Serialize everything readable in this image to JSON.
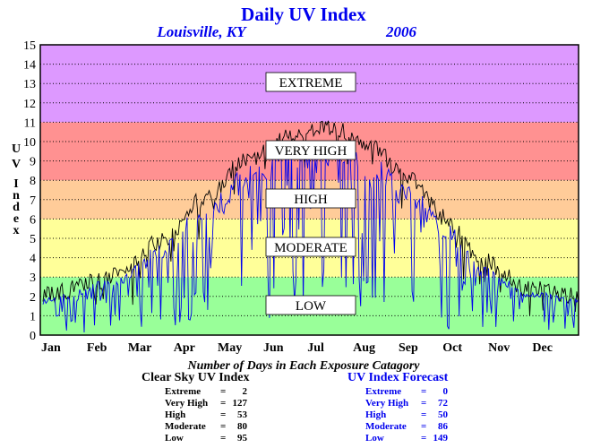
{
  "page": {
    "title": "Daily UV Index",
    "location": "Louisville, KY",
    "year": "2006",
    "subtitle": "Number of Days in Each Exposure Catagory"
  },
  "colors": {
    "extreme": "#dd99ff",
    "very_high": "#ff9191",
    "high": "#ffcc99",
    "moderate": "#ffff99",
    "low": "#99ff99",
    "clear_sky_line": "#000000",
    "forecast_line": "#0000ee",
    "title": "#0000ee"
  },
  "chart_data": {
    "type": "line",
    "title": "Daily UV Index",
    "ylabel": "UV Index",
    "ylim": [
      0,
      15
    ],
    "yticks": [
      "0",
      "1",
      "2",
      "3",
      "4",
      "5",
      "6",
      "7",
      "8",
      "9",
      "10",
      "11",
      "12",
      "13",
      "14",
      "15"
    ],
    "xlim": [
      1,
      365
    ],
    "months": [
      "Jan",
      "Feb",
      "Mar",
      "Apr",
      "May",
      "Jun",
      "Jul",
      "Aug",
      "Sep",
      "Oct",
      "Nov",
      "Dec"
    ],
    "grid": true,
    "bands": [
      {
        "label": "LOW",
        "from": 0,
        "to": 3,
        "color": "#99ff99"
      },
      {
        "label": "MODERATE",
        "from": 3,
        "to": 6,
        "color": "#ffff99"
      },
      {
        "label": "HIGH",
        "from": 6,
        "to": 8,
        "color": "#ffcc99"
      },
      {
        "label": "VERY HIGH",
        "from": 8,
        "to": 11,
        "color": "#ff9191"
      },
      {
        "label": "EXTREME",
        "from": 11,
        "to": 15,
        "color": "#dd99ff"
      }
    ],
    "series": [
      {
        "key": "clear_sky",
        "color": "#000000",
        "envelope": {
          "day": [
            1,
            50,
            80,
            110,
            140,
            172,
            200,
            225,
            250,
            275,
            300,
            330,
            365
          ],
          "uv": [
            2.0,
            3.0,
            4.8,
            7.0,
            9.0,
            10.4,
            10.6,
            9.6,
            8.0,
            6.0,
            3.8,
            2.4,
            2.0
          ]
        }
      },
      {
        "key": "forecast",
        "color": "#0000ee"
      }
    ]
  },
  "stats": {
    "clear_sky": {
      "heading": "Clear Sky UV Index",
      "rows": [
        {
          "label": "Extreme",
          "value": "2"
        },
        {
          "label": "Very High",
          "value": "127"
        },
        {
          "label": "High",
          "value": "53"
        },
        {
          "label": "Moderate",
          "value": "80"
        },
        {
          "label": "Low",
          "value": "95"
        }
      ]
    },
    "forecast": {
      "heading": "UV Index Forecast",
      "rows": [
        {
          "label": "Extreme",
          "value": "0"
        },
        {
          "label": "Very High",
          "value": "72"
        },
        {
          "label": "High",
          "value": "50"
        },
        {
          "label": "Moderate",
          "value": "86"
        },
        {
          "label": "Low",
          "value": "149"
        }
      ]
    }
  }
}
